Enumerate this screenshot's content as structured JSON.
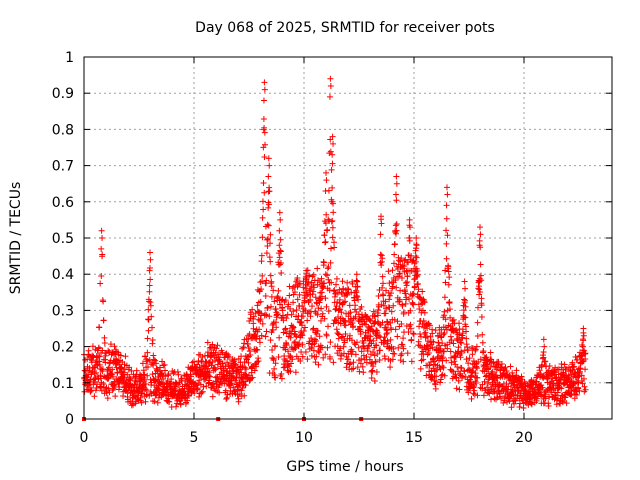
{
  "chart_data": {
    "type": "scatter",
    "title": "Day 068 of 2025, SRMTID for receiver pots",
    "xlabel": "GPS time / hours",
    "ylabel": "SRMTID / TECUs",
    "xlim": [
      0,
      24
    ],
    "ylim": [
      0,
      1
    ],
    "xticks": [
      "0",
      "5",
      "10",
      "15",
      "20"
    ],
    "yticks": [
      "0",
      "0.1",
      "0.2",
      "0.3",
      "0.4",
      "0.5",
      "0.6",
      "0.7",
      "0.8",
      "0.9",
      "1"
    ],
    "grid": true,
    "marker": "+",
    "series_color": "#ff0000",
    "zero_markers_x": [
      0.0,
      6.1,
      10.0,
      12.6
    ],
    "baseline": [
      [
        0.0,
        0.14
      ],
      [
        0.5,
        0.13
      ],
      [
        1.0,
        0.14
      ],
      [
        1.5,
        0.13
      ],
      [
        2.0,
        0.1
      ],
      [
        2.5,
        0.09
      ],
      [
        3.0,
        0.13
      ],
      [
        3.5,
        0.1
      ],
      [
        4.0,
        0.08
      ],
      [
        4.5,
        0.08
      ],
      [
        5.0,
        0.11
      ],
      [
        5.5,
        0.13
      ],
      [
        6.0,
        0.14
      ],
      [
        6.5,
        0.12
      ],
      [
        7.0,
        0.1
      ],
      [
        7.5,
        0.18
      ],
      [
        8.0,
        0.28
      ],
      [
        8.5,
        0.25
      ],
      [
        9.0,
        0.22
      ],
      [
        9.5,
        0.26
      ],
      [
        10.0,
        0.27
      ],
      [
        10.5,
        0.28
      ],
      [
        11.0,
        0.29
      ],
      [
        11.5,
        0.27
      ],
      [
        12.0,
        0.26
      ],
      [
        12.5,
        0.24
      ],
      [
        13.0,
        0.2
      ],
      [
        13.5,
        0.22
      ],
      [
        14.0,
        0.3
      ],
      [
        14.5,
        0.32
      ],
      [
        15.0,
        0.3
      ],
      [
        15.5,
        0.22
      ],
      [
        16.0,
        0.16
      ],
      [
        16.5,
        0.2
      ],
      [
        17.0,
        0.18
      ],
      [
        17.5,
        0.13
      ],
      [
        18.0,
        0.13
      ],
      [
        18.5,
        0.12
      ],
      [
        19.0,
        0.1
      ],
      [
        19.5,
        0.09
      ],
      [
        20.0,
        0.07
      ],
      [
        20.5,
        0.08
      ],
      [
        21.0,
        0.1
      ],
      [
        21.5,
        0.09
      ],
      [
        22.0,
        0.1
      ],
      [
        22.5,
        0.12
      ],
      [
        22.8,
        0.12
      ]
    ],
    "peaks": [
      {
        "x": 0.8,
        "y": 0.52
      },
      {
        "x": 3.0,
        "y": 0.46
      },
      {
        "x": 8.2,
        "y": 0.93
      },
      {
        "x": 8.4,
        "y": 0.72
      },
      {
        "x": 8.9,
        "y": 0.57
      },
      {
        "x": 10.1,
        "y": 0.41
      },
      {
        "x": 11.0,
        "y": 0.68
      },
      {
        "x": 11.2,
        "y": 0.94
      },
      {
        "x": 11.3,
        "y": 0.78
      },
      {
        "x": 12.4,
        "y": 0.4
      },
      {
        "x": 13.5,
        "y": 0.56
      },
      {
        "x": 14.2,
        "y": 0.67
      },
      {
        "x": 14.8,
        "y": 0.55
      },
      {
        "x": 15.1,
        "y": 0.5
      },
      {
        "x": 16.5,
        "y": 0.64
      },
      {
        "x": 17.3,
        "y": 0.38
      },
      {
        "x": 18.0,
        "y": 0.53
      },
      {
        "x": 20.9,
        "y": 0.22
      },
      {
        "x": 22.7,
        "y": 0.25
      }
    ],
    "n_points": 2700,
    "y_min_shown": 0.03
  }
}
